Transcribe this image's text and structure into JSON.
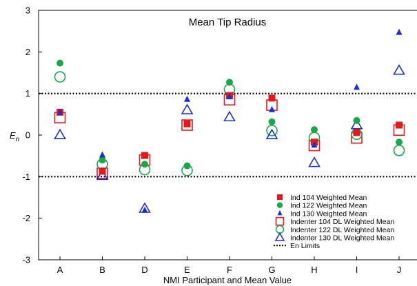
{
  "chart_data": {
    "type": "scatter",
    "title": "Mean Tip Radius",
    "xlabel": "NMI Participant and Mean Value",
    "ylabel_main": "E",
    "ylabel_sub": "n",
    "categories": [
      "A",
      "B",
      "D",
      "E",
      "F",
      "G",
      "H",
      "I",
      "J"
    ],
    "ylim": [
      -3,
      3
    ],
    "yticks": [
      -3,
      -2,
      -1,
      0,
      1,
      2,
      3
    ],
    "grid": false,
    "legend_position": "bottom-right",
    "reference_lines": {
      "name": "En Limits",
      "values": [
        1,
        -1
      ],
      "style": "dotted",
      "color": "#000000"
    },
    "series": [
      {
        "name": "Ind 104 Weighted Mean",
        "marker": "square",
        "filled": true,
        "color": "#e31a1c",
        "values": [
          0.55,
          -0.87,
          -0.49,
          0.27,
          0.95,
          0.89,
          -0.17,
          0.06,
          0.24
        ]
      },
      {
        "name": "Ind 122 Weighted Mean",
        "marker": "circle",
        "filled": true,
        "color": "#1aa64b",
        "values": [
          1.73,
          -0.6,
          -0.7,
          -0.74,
          1.27,
          0.32,
          0.13,
          0.35,
          -0.17
        ]
      },
      {
        "name": "Ind 130 Weighted Mean",
        "marker": "triangle",
        "filled": true,
        "color": "#1c2fcc",
        "values": [
          0.55,
          -0.48,
          -1.81,
          0.86,
          0.92,
          0.61,
          -0.24,
          1.15,
          2.47
        ]
      },
      {
        "name": "Indenter 104 DL Weighted Mean",
        "marker": "square",
        "filled": false,
        "color": "#e31a1c",
        "values": [
          0.42,
          -0.92,
          -0.6,
          0.24,
          0.85,
          0.72,
          -0.25,
          -0.07,
          0.12
        ]
      },
      {
        "name": "Indenter 122 DL Weighted Mean",
        "marker": "circle",
        "filled": false,
        "color": "#1aa64b",
        "values": [
          1.4,
          -0.7,
          -0.83,
          -0.85,
          1.1,
          0.11,
          -0.06,
          0.02,
          -0.37
        ]
      },
      {
        "name": "Indenter 130 DL Weighted Mean",
        "marker": "triangle",
        "filled": false,
        "color": "#1c2fcc",
        "values": [
          0.0,
          -0.98,
          -1.77,
          0.6,
          0.43,
          0.0,
          -0.67,
          0.24,
          1.55
        ]
      }
    ]
  }
}
